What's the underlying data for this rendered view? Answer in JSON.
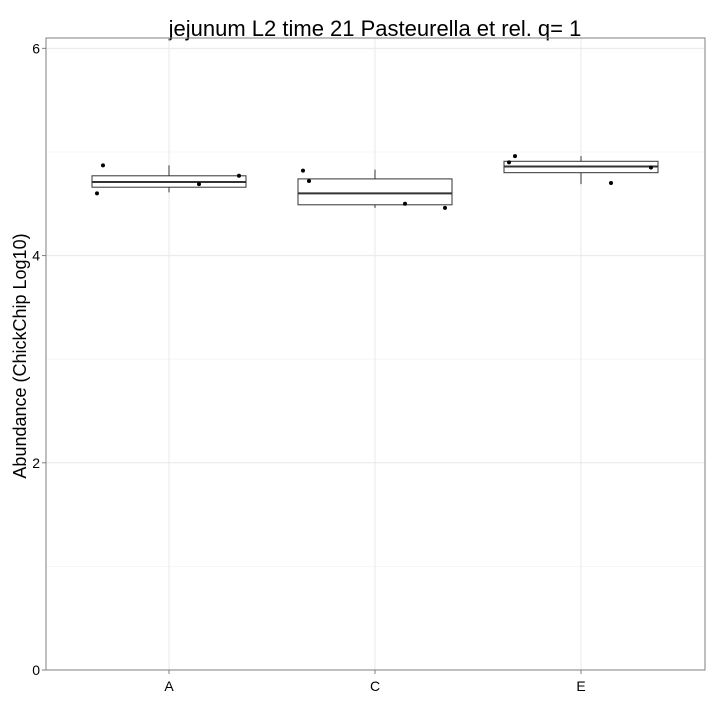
{
  "chart_data": {
    "type": "box",
    "title": "jejunum L2 time 21 Pasteurella et rel. q= 1",
    "xlabel": "",
    "ylabel": "Abundance (ChickChip Log10)",
    "ylim": [
      0,
      6.1
    ],
    "yticks": [
      0,
      2,
      4,
      6
    ],
    "grid": true,
    "categories": [
      "A",
      "C",
      "E"
    ],
    "boxes": [
      {
        "category": "A",
        "whisker_low": 4.61,
        "q1": 4.66,
        "median": 4.71,
        "q3": 4.77,
        "whisker_high": 4.87,
        "points": [
          4.6,
          4.87,
          4.69,
          4.77
        ]
      },
      {
        "category": "C",
        "whisker_low": 4.46,
        "q1": 4.49,
        "median": 4.6,
        "q3": 4.74,
        "whisker_high": 4.83,
        "points": [
          4.82,
          4.72,
          4.5,
          4.46
        ]
      },
      {
        "category": "E",
        "whisker_low": 4.69,
        "q1": 4.8,
        "median": 4.86,
        "q3": 4.91,
        "whisker_high": 4.96,
        "points": [
          4.9,
          4.96,
          4.7,
          4.85
        ]
      }
    ]
  }
}
